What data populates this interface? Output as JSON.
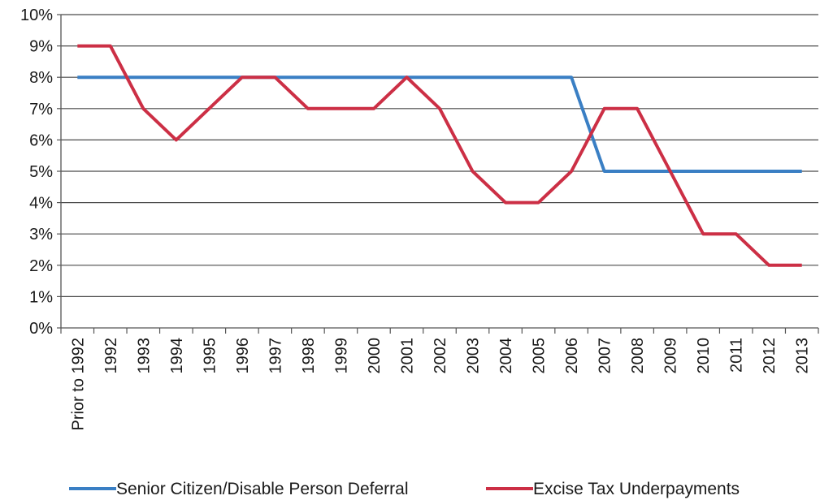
{
  "chart_data": {
    "type": "line",
    "categories": [
      "Prior to 1992",
      "1992",
      "1993",
      "1994",
      "1995",
      "1996",
      "1997",
      "1998",
      "1999",
      "2000",
      "2001",
      "2002",
      "2003",
      "2004",
      "2005",
      "2006",
      "2007",
      "2008",
      "2009",
      "2010",
      "2011",
      "2012",
      "2013"
    ],
    "y_tick_labels": [
      "0%",
      "1%",
      "2%",
      "3%",
      "4%",
      "5%",
      "6%",
      "7%",
      "8%",
      "9%",
      "10%"
    ],
    "ylim": [
      0,
      10
    ],
    "y_unit": "%",
    "grid": true,
    "legend_position": "bottom",
    "series": [
      {
        "name": "Senior Citizen/Disable Person Deferral",
        "color": "#3a7fc4",
        "values": [
          8,
          8,
          8,
          8,
          8,
          8,
          8,
          8,
          8,
          8,
          8,
          8,
          8,
          8,
          8,
          8,
          5,
          5,
          5,
          5,
          5,
          5,
          5
        ]
      },
      {
        "name": "Excise Tax Underpayments",
        "color": "#cc2f45",
        "values": [
          9,
          9,
          7,
          6,
          7,
          8,
          8,
          7,
          7,
          7,
          8,
          7,
          5,
          4,
          4,
          5,
          7,
          7,
          5,
          3,
          3,
          2,
          2
        ]
      }
    ]
  }
}
